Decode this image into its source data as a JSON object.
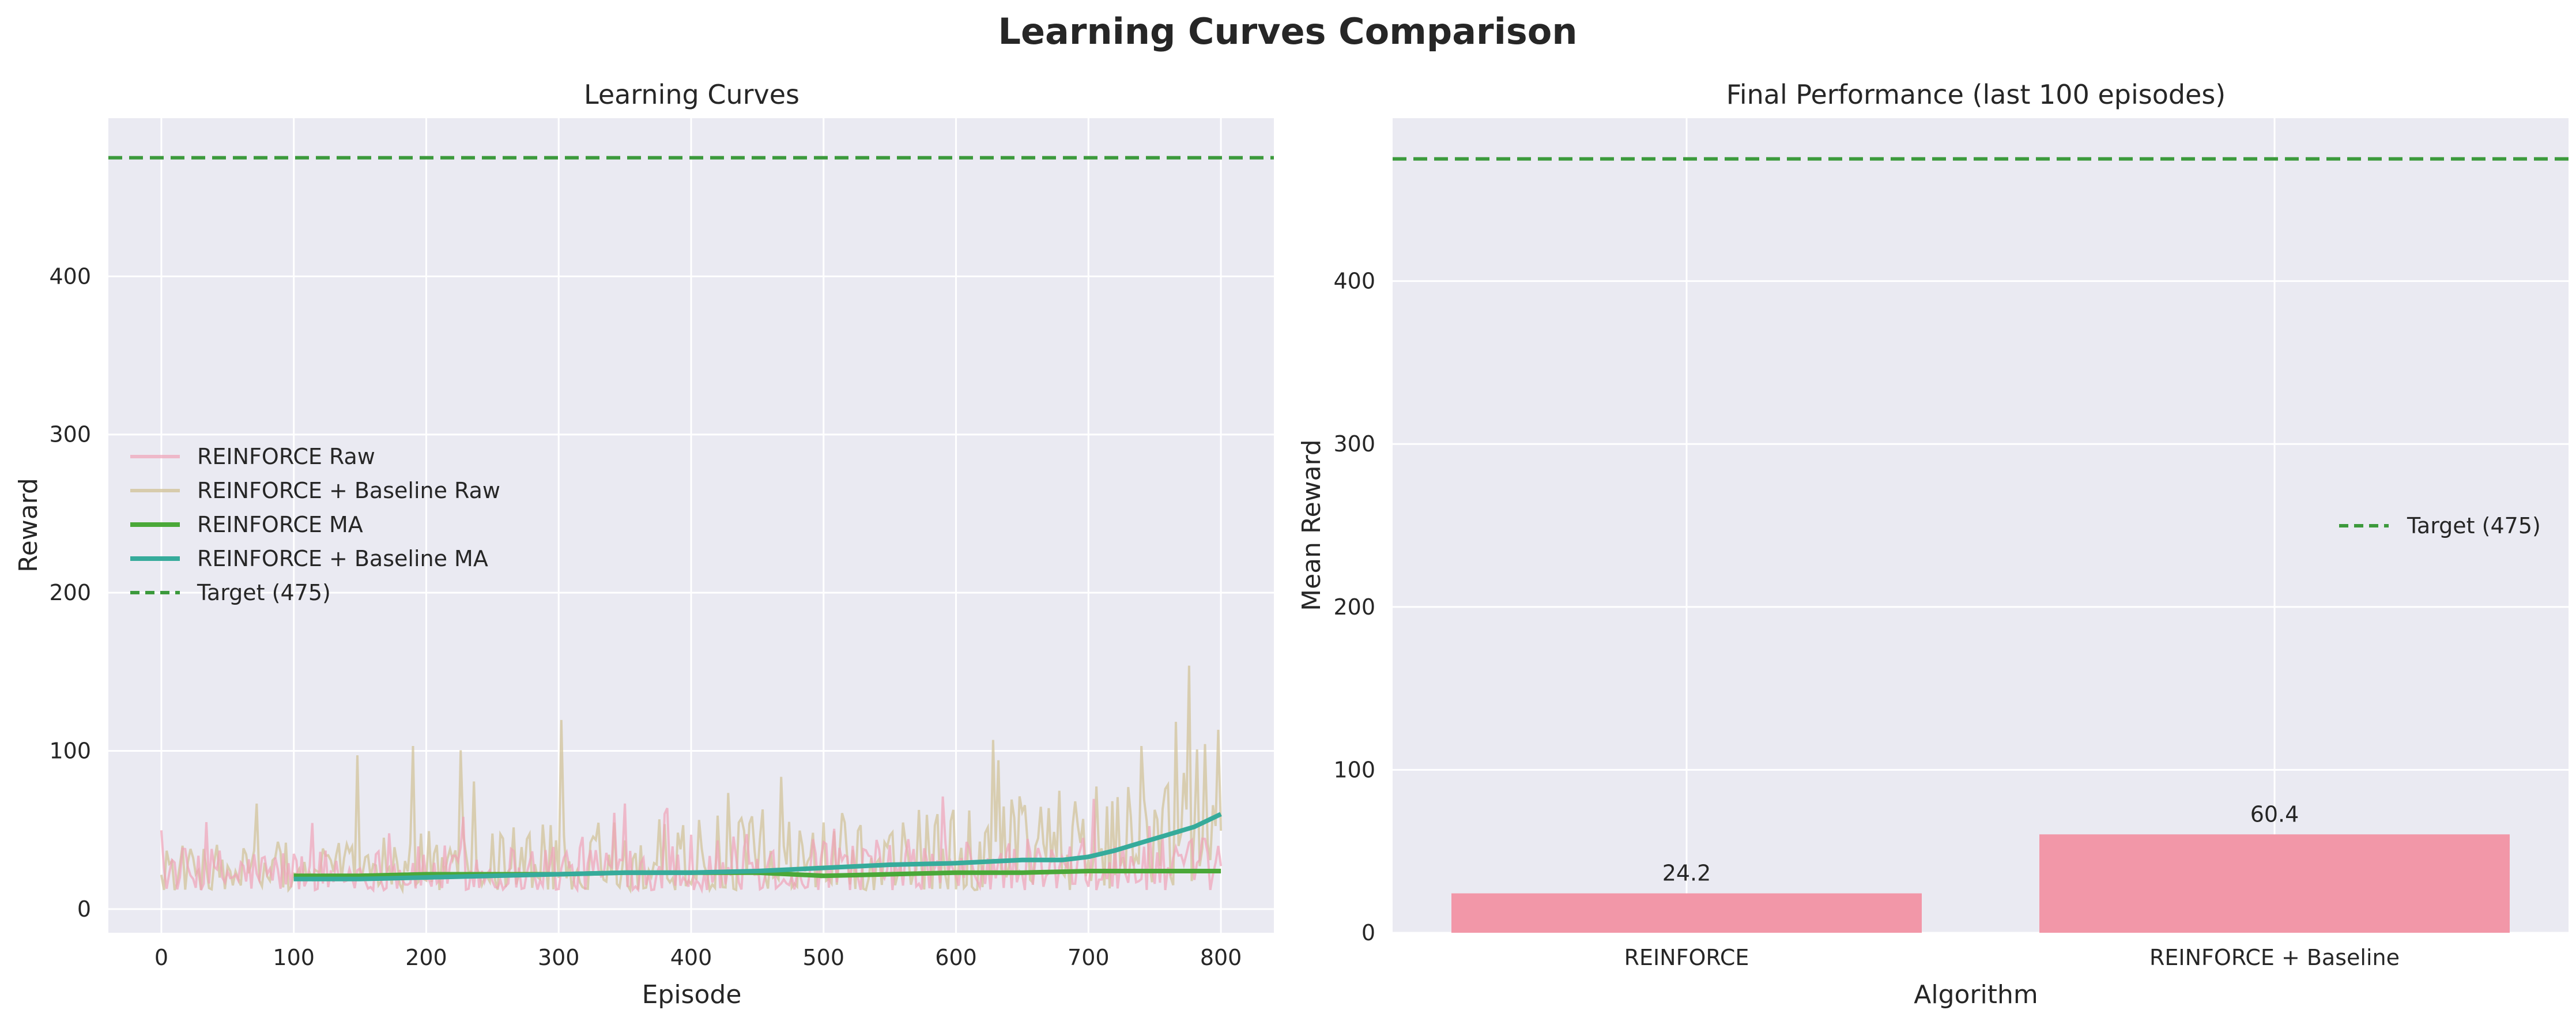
{
  "figure_title": "Learning Curves Comparison",
  "colors": {
    "background": "#eaeaf2",
    "grid": "#ffffff",
    "reinforce_raw": "#f0a3b8",
    "baseline_raw": "#d2c39a",
    "reinforce_ma": "#4aa838",
    "baseline_ma": "#36ab9b",
    "target": "#3c9a3c",
    "bar": "#f297a8"
  },
  "chart_data": [
    {
      "type": "line",
      "title": "Learning Curves",
      "xlabel": "Episode",
      "ylabel": "Reward",
      "xlim": [
        -40,
        840
      ],
      "ylim": [
        -15,
        500
      ],
      "xticks": [
        0,
        100,
        200,
        300,
        400,
        500,
        600,
        700,
        800
      ],
      "yticks": [
        0,
        100,
        200,
        300,
        400
      ],
      "grid": true,
      "legend_position": "center-left",
      "target": {
        "name": "Target (475)",
        "value": 475
      },
      "series": [
        {
          "name": "REINFORCE Raw",
          "style": "raw",
          "approximate_envelope": {
            "episode": [
              0,
              100,
              200,
              300,
              400,
              500,
              600,
              700,
              800
            ],
            "typical_low": [
              12,
              12,
              12,
              12,
              12,
              12,
              12,
              12,
              12
            ],
            "typical_high": [
              40,
              40,
              40,
              45,
              50,
              45,
              45,
              45,
              45
            ],
            "peak_max": 85
          }
        },
        {
          "name": "REINFORCE + Baseline Raw",
          "style": "raw",
          "approximate_envelope": {
            "episode": [
              0,
              100,
              200,
              300,
              400,
              500,
              600,
              700,
              750,
              800
            ],
            "typical_low": [
              12,
              12,
              12,
              12,
              12,
              12,
              12,
              12,
              15,
              15
            ],
            "typical_high": [
              40,
              45,
              50,
              55,
              60,
              60,
              65,
              80,
              120,
              150
            ],
            "peak_max": 196
          }
        },
        {
          "name": "REINFORCE MA",
          "style": "ma",
          "x": [
            100,
            150,
            200,
            250,
            300,
            350,
            400,
            450,
            500,
            550,
            600,
            650,
            700,
            750,
            800
          ],
          "y": [
            21,
            21,
            22,
            22,
            22,
            23,
            23,
            23,
            21,
            22,
            23,
            23,
            24,
            24,
            24
          ]
        },
        {
          "name": "REINFORCE + Baseline MA",
          "style": "ma",
          "x": [
            100,
            150,
            200,
            250,
            300,
            350,
            400,
            450,
            500,
            550,
            600,
            650,
            680,
            700,
            720,
            740,
            760,
            780,
            800
          ],
          "y": [
            19,
            19,
            20,
            21,
            22,
            23,
            23,
            24,
            26,
            28,
            29,
            31,
            31,
            33,
            37,
            42,
            47,
            52,
            60
          ]
        }
      ]
    },
    {
      "type": "bar",
      "title": "Final Performance (last 100 episodes)",
      "xlabel": "Algorithm",
      "ylabel": "Mean Reward",
      "categories": [
        "REINFORCE",
        "REINFORCE + Baseline"
      ],
      "values": [
        24.2,
        60.4
      ],
      "value_labels": [
        "24.2",
        "60.4"
      ],
      "ylim": [
        0,
        500
      ],
      "yticks": [
        0,
        100,
        200,
        300,
        400
      ],
      "grid": true,
      "legend_position": "center-right",
      "target": {
        "name": "Target (475)",
        "value": 475
      }
    }
  ]
}
